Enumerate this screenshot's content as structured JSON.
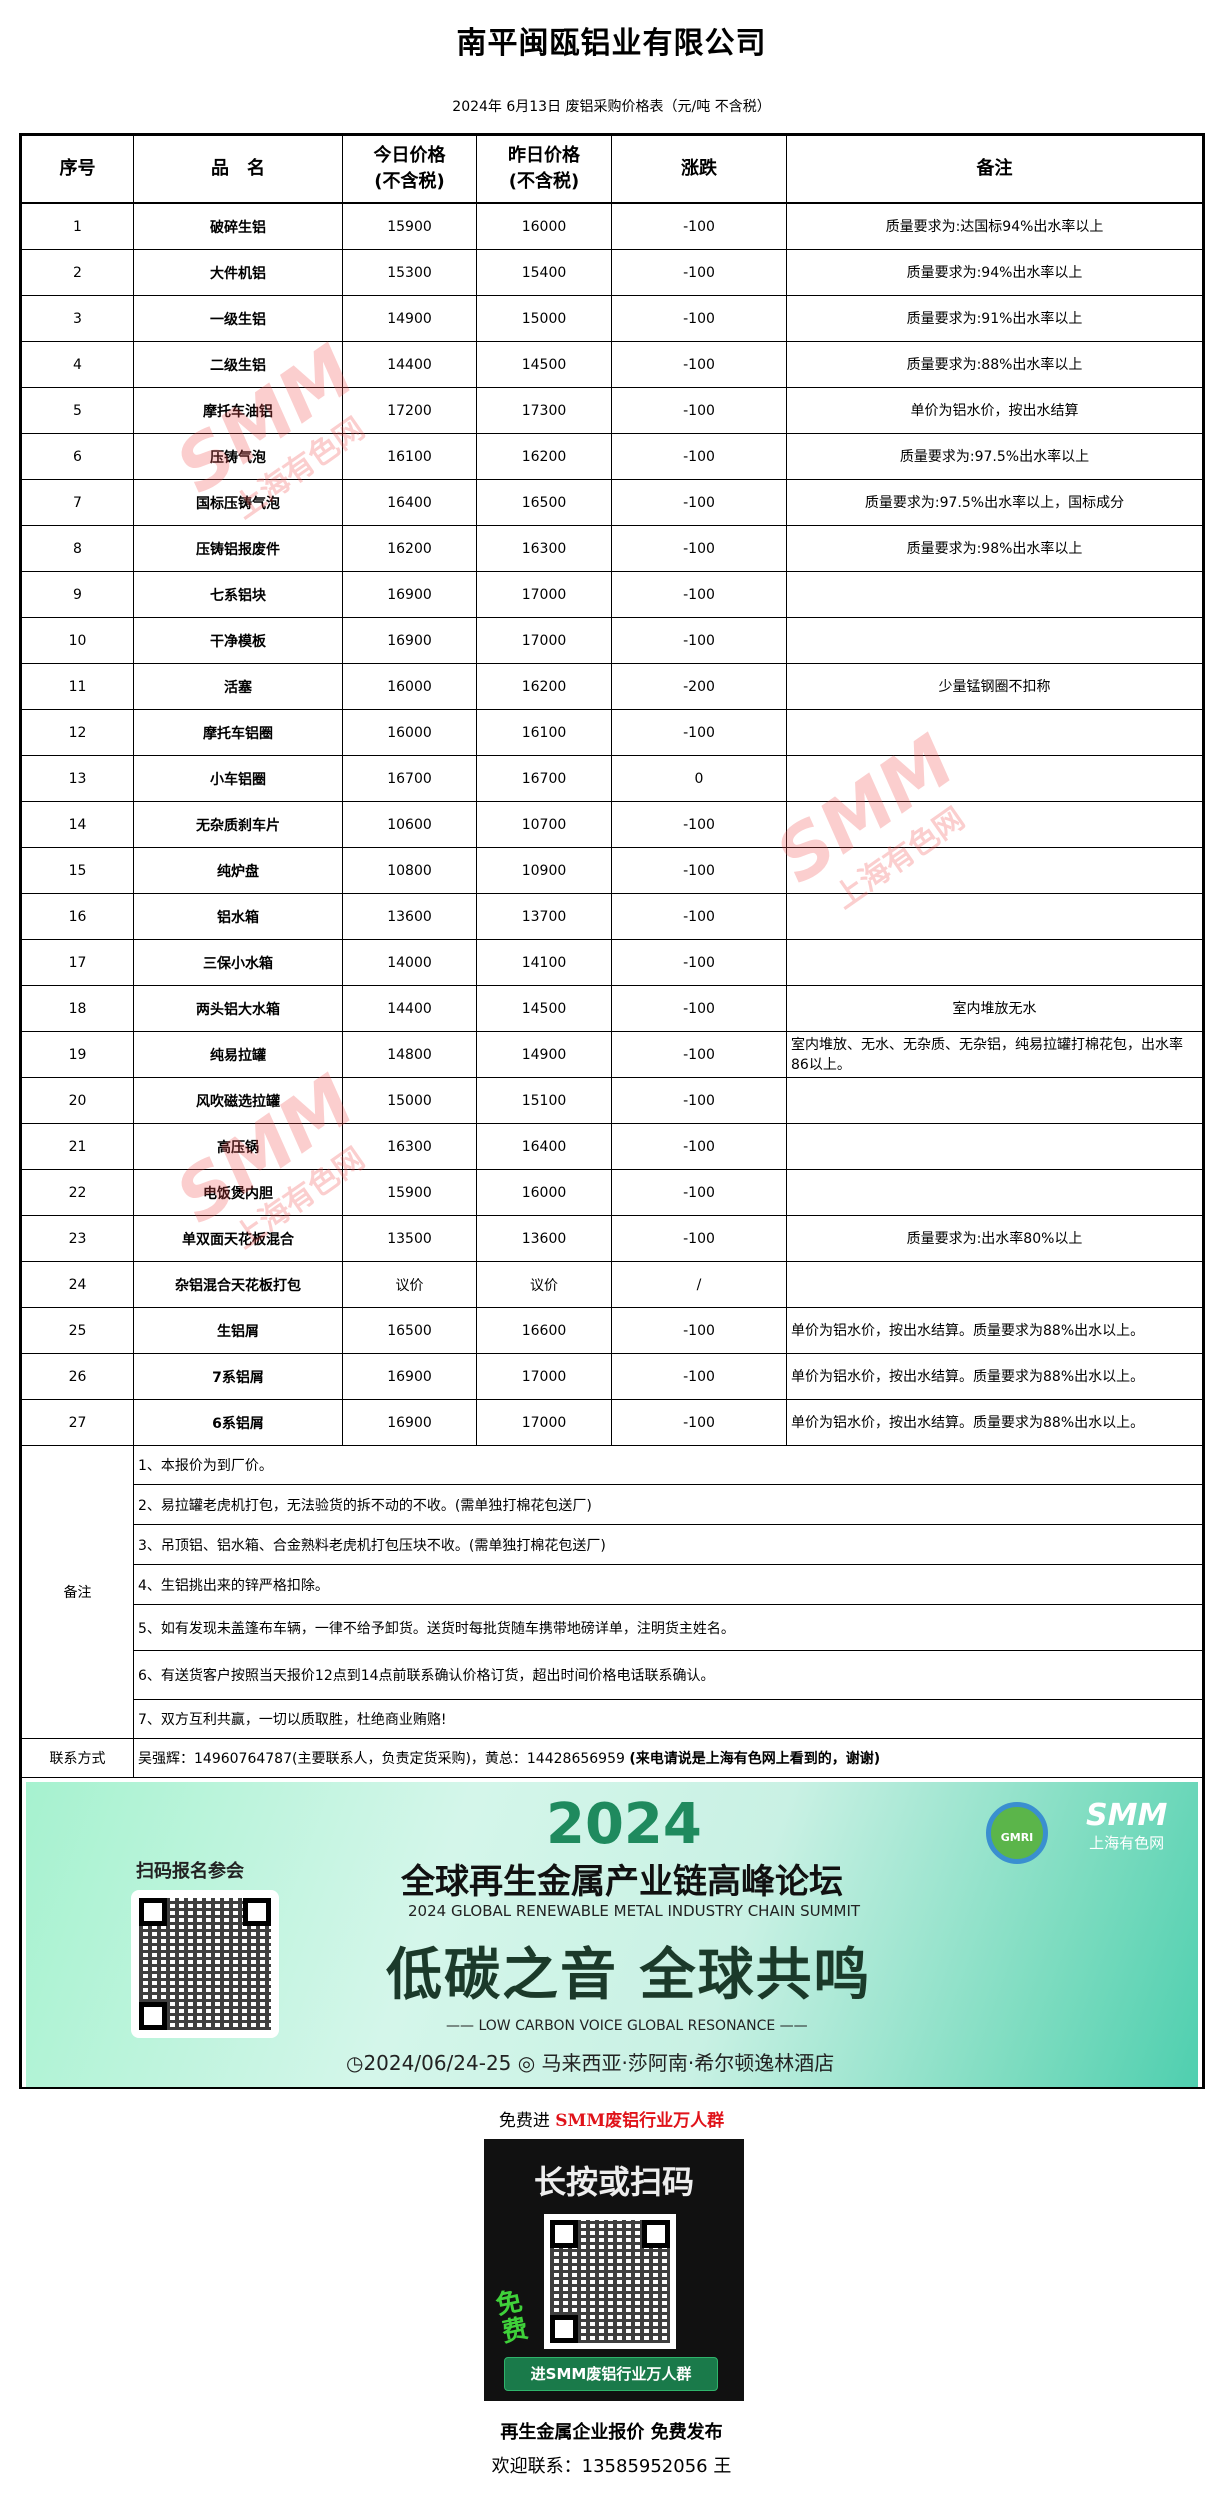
{
  "title": "南平闽瓯铝业有限公司",
  "subtitle": "2024年 6月13日 废铝采购价格表（元/吨  不含税）",
  "headers": [
    "序号",
    "品　名",
    "今日价格\n(不含税)",
    "昨日价格\n(不含税)",
    "涨跌",
    "备注"
  ],
  "rows": [
    {
      "no": "1",
      "name": "破碎生铝",
      "today": "15900",
      "yesterday": "16000",
      "change": "-100",
      "note": "质量要求为:达国标94%出水率以上"
    },
    {
      "no": "2",
      "name": "大件机铝",
      "today": "15300",
      "yesterday": "15400",
      "change": "-100",
      "note": "质量要求为:94%出水率以上"
    },
    {
      "no": "3",
      "name": "一级生铝",
      "today": "14900",
      "yesterday": "15000",
      "change": "-100",
      "note": "质量要求为:91%出水率以上"
    },
    {
      "no": "4",
      "name": "二级生铝",
      "today": "14400",
      "yesterday": "14500",
      "change": "-100",
      "note": "质量要求为:88%出水率以上"
    },
    {
      "no": "5",
      "name": "摩托车油铝",
      "today": "17200",
      "yesterday": "17300",
      "change": "-100",
      "note": "单价为铝水价，按出水结算"
    },
    {
      "no": "6",
      "name": "压铸气泡",
      "today": "16100",
      "yesterday": "16200",
      "change": "-100",
      "note": "质量要求为:97.5%出水率以上"
    },
    {
      "no": "7",
      "name": "国标压铸气泡",
      "today": "16400",
      "yesterday": "16500",
      "change": "-100",
      "note": "质量要求为:97.5%出水率以上，国标成分"
    },
    {
      "no": "8",
      "name": "压铸铝报废件",
      "today": "16200",
      "yesterday": "16300",
      "change": "-100",
      "note": "质量要求为:98%出水率以上"
    },
    {
      "no": "9",
      "name": "七系铝块",
      "today": "16900",
      "yesterday": "17000",
      "change": "-100",
      "note": ""
    },
    {
      "no": "10",
      "name": "干净模板",
      "today": "16900",
      "yesterday": "17000",
      "change": "-100",
      "note": ""
    },
    {
      "no": "11",
      "name": "活塞",
      "today": "16000",
      "yesterday": "16200",
      "change": "-200",
      "note": "少量锰钢圈不扣称"
    },
    {
      "no": "12",
      "name": "摩托车铝圈",
      "today": "16000",
      "yesterday": "16100",
      "change": "-100",
      "note": ""
    },
    {
      "no": "13",
      "name": "小车铝圈",
      "today": "16700",
      "yesterday": "16700",
      "change": "0",
      "note": ""
    },
    {
      "no": "14",
      "name": "无杂质刹车片",
      "today": "10600",
      "yesterday": "10700",
      "change": "-100",
      "note": ""
    },
    {
      "no": "15",
      "name": "纯炉盘",
      "today": "10800",
      "yesterday": "10900",
      "change": "-100",
      "note": ""
    },
    {
      "no": "16",
      "name": "铝水箱",
      "today": "13600",
      "yesterday": "13700",
      "change": "-100",
      "note": ""
    },
    {
      "no": "17",
      "name": "三保小水箱",
      "today": "14000",
      "yesterday": "14100",
      "change": "-100",
      "note": ""
    },
    {
      "no": "18",
      "name": "两头铝大水箱",
      "today": "14400",
      "yesterday": "14500",
      "change": "-100",
      "note": "室内堆放无水"
    },
    {
      "no": "19",
      "name": "纯易拉罐",
      "today": "14800",
      "yesterday": "14900",
      "change": "-100",
      "note": "室内堆放、无水、无杂质、无杂铝，纯易拉罐打棉花包，出水率86以上。"
    },
    {
      "no": "20",
      "name": "风吹磁选拉罐",
      "today": "15000",
      "yesterday": "15100",
      "change": "-100",
      "note": ""
    },
    {
      "no": "21",
      "name": "高压锅",
      "today": "16300",
      "yesterday": "16400",
      "change": "-100",
      "note": ""
    },
    {
      "no": "22",
      "name": "电饭煲内胆",
      "today": "15900",
      "yesterday": "16000",
      "change": "-100",
      "note": ""
    },
    {
      "no": "23",
      "name": "单双面天花板混合",
      "today": "13500",
      "yesterday": "13600",
      "change": "-100",
      "note": "质量要求为:出水率80%以上"
    },
    {
      "no": "24",
      "name": "杂铝混合天花板打包",
      "today": "议价",
      "yesterday": "议价",
      "change": "/",
      "note": ""
    },
    {
      "no": "25",
      "name": "生铝屑",
      "today": "16500",
      "yesterday": "16600",
      "change": "-100",
      "note": "单价为铝水价，按出水结算。质量要求为88%出水以上。"
    },
    {
      "no": "26",
      "name": "7系铝屑",
      "today": "16900",
      "yesterday": "17000",
      "change": "-100",
      "note": "单价为铝水价，按出水结算。质量要求为88%出水以上。"
    },
    {
      "no": "27",
      "name": "6系铝屑",
      "today": "16900",
      "yesterday": "17000",
      "change": "-100",
      "note": "单价为铝水价，按出水结算。质量要求为88%出水以上。"
    }
  ],
  "remarks": {
    "label": "备注",
    "items": [
      "1、本报价为到厂价。",
      "2、易拉罐老虎机打包，无法验货的拆不动的不收。(需单独打棉花包送厂)",
      "3、吊顶铝、铝水箱、合金熟料老虎机打包压块不收。(需单独打棉花包送厂)",
      "4、生铝挑出来的锌严格扣除。",
      "5、如有发现未盖篷布车辆，一律不给予卸货。送货时每批货随车携带地磅详单，注明货主姓名。",
      "6、有送货客户按照当天报价12点到14点前联系确认价格订货，超出时间价格电话联系确认。",
      "7、双方互利共赢，一切以质取胜，杜绝商业贿赂!"
    ]
  },
  "contact": {
    "label": "联系方式",
    "text": "吴强辉：14960764787(主要联系人，负责定货采购)，黄总：14428656959 ",
    "bold": "(来电请说是上海有色网上看到的，谢谢)"
  },
  "banner": {
    "year": "2024",
    "scan_label": "扫码报名参会",
    "title_cn": "全球再生金属产业链高峰论坛",
    "title_en": "2024 GLOBAL RENEWABLE METAL INDUSTRY CHAIN SUMMIT",
    "slogan": "低碳之音 全球共鸣",
    "slogan_en": "—— LOW CARBON VOICE GLOBAL RESONANCE ——",
    "date_location": "◷2024/06/24-25 ◎ 马来西亚·莎阿南·希尔顿逸林酒店",
    "logo_gmri": "GMRI",
    "logo_smm": "SMM",
    "logo_smm_cn": "上海有色网"
  },
  "watermark": {
    "brand": "SMM",
    "brand_cn": "上海有色网",
    "color": "#f05050"
  },
  "join": {
    "prefix": "免费进 ",
    "highlight": "SMM废铝行业万人群",
    "highlight_color": "#e0131a"
  },
  "qr_card": {
    "heading": "长按或扫码",
    "free": "免费",
    "button": "进SMM废铝行业万人群"
  },
  "footer": {
    "line1": "再生金属企业报价 免费发布",
    "line2": "欢迎联系：13585952056 王"
  }
}
